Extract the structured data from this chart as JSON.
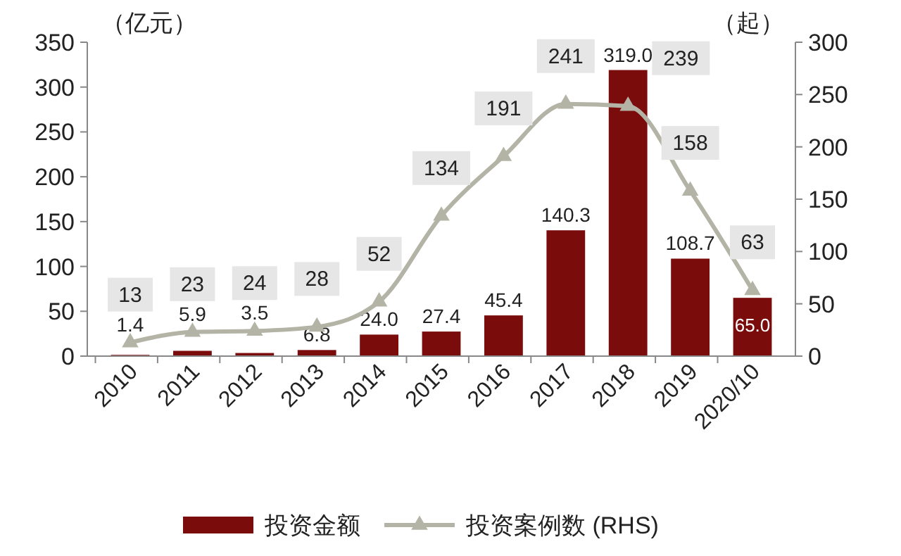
{
  "chart_data": {
    "type": "bar",
    "categories": [
      "2010",
      "2011",
      "2012",
      "2013",
      "2014",
      "2015",
      "2016",
      "2017",
      "2018",
      "2019",
      "2020/10"
    ],
    "ylabel": "（亿元）",
    "y2label": "（起）",
    "ylim": [
      0,
      350
    ],
    "yticks": [
      0,
      50,
      100,
      150,
      200,
      250,
      300,
      350
    ],
    "y2lim": [
      0,
      300
    ],
    "y2ticks": [
      0,
      50,
      100,
      150,
      200,
      250,
      300
    ],
    "series": [
      {
        "name": "投资金额",
        "color": "#7b0c0c",
        "values": [
          1.4,
          5.9,
          3.5,
          6.8,
          24.0,
          27.4,
          45.4,
          140.3,
          319.0,
          108.7,
          65.0
        ],
        "value_labels": [
          "1.4",
          "5.9",
          "3.5",
          "6.8",
          "24.0",
          "27.4",
          "45.4",
          "140.3",
          "319.0",
          "108.7",
          "65.0"
        ]
      },
      {
        "name": "投资案例数 (RHS)",
        "type": "line",
        "axis": "y2",
        "color": "#b4b4a6",
        "marker": "triangle",
        "values": [
          13,
          23,
          24,
          28,
          52,
          134,
          191,
          241,
          239,
          158,
          63
        ],
        "value_labels": [
          "13",
          "23",
          "24",
          "28",
          "52",
          "134",
          "191",
          "241",
          "239",
          "158",
          "63"
        ]
      }
    ],
    "legend": "bottom",
    "grid": false
  }
}
